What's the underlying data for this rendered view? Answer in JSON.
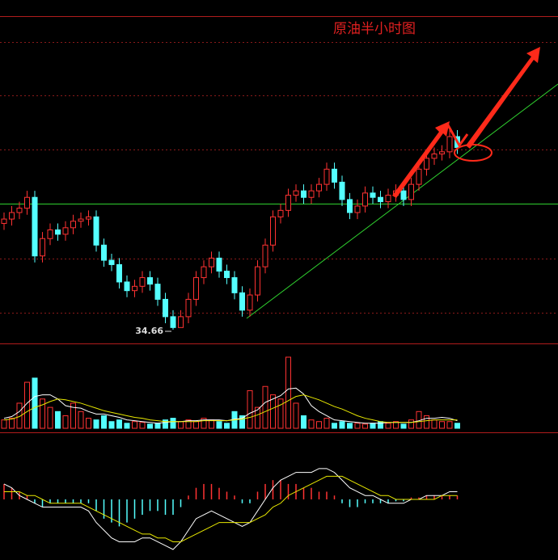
{
  "chart_data": {
    "type": "candlestick",
    "title": "原油半小时图",
    "up_color": "#ff3232",
    "down_color": "#54ffff",
    "open": [
      35.15,
      35.17,
      35.2,
      35.22,
      35.27,
      35.0,
      35.08,
      35.12,
      35.1,
      35.13,
      35.16,
      35.17,
      35.18,
      35.05,
      34.98,
      34.96,
      34.88,
      34.84,
      34.86,
      34.9,
      34.87,
      34.8,
      34.72,
      34.67,
      34.72,
      34.8,
      34.9,
      34.95,
      34.99,
      34.93,
      34.9,
      34.83,
      34.75,
      34.82,
      34.95,
      35.05,
      35.18,
      35.21,
      35.28,
      35.3,
      35.27,
      35.3,
      35.33,
      35.4,
      35.34,
      35.26,
      35.2,
      35.23,
      35.29,
      35.27,
      35.25,
      35.28,
      35.3,
      35.26,
      35.33,
      35.4,
      35.45,
      35.47,
      35.48,
      35.55
    ],
    "high": [
      35.2,
      35.23,
      35.25,
      35.3,
      35.3,
      35.11,
      35.15,
      35.15,
      35.16,
      35.19,
      35.2,
      35.21,
      35.21,
      35.08,
      35.01,
      34.99,
      34.91,
      34.89,
      34.93,
      34.93,
      34.9,
      34.83,
      34.75,
      34.75,
      34.83,
      34.93,
      34.98,
      35.02,
      35.02,
      34.96,
      34.93,
      34.86,
      34.85,
      34.98,
      35.08,
      35.21,
      35.24,
      35.31,
      35.33,
      35.33,
      35.33,
      35.36,
      35.43,
      35.43,
      35.37,
      35.29,
      35.26,
      35.32,
      35.32,
      35.3,
      35.31,
      35.33,
      35.33,
      35.36,
      35.43,
      35.48,
      35.5,
      35.51,
      35.58,
      35.58
    ],
    "low": [
      35.12,
      35.14,
      35.17,
      35.19,
      34.97,
      34.97,
      35.05,
      35.07,
      35.07,
      35.1,
      35.13,
      35.14,
      35.02,
      34.95,
      34.93,
      34.85,
      34.81,
      34.81,
      34.83,
      34.84,
      34.77,
      34.69,
      34.66,
      34.67,
      34.69,
      34.77,
      34.87,
      34.92,
      34.9,
      34.87,
      34.8,
      34.72,
      34.72,
      34.79,
      34.92,
      35.02,
      35.15,
      35.18,
      35.25,
      35.24,
      35.24,
      35.27,
      35.3,
      35.31,
      35.23,
      35.17,
      35.17,
      35.2,
      35.24,
      35.22,
      35.22,
      35.25,
      35.23,
      35.23,
      35.3,
      35.37,
      35.42,
      35.44,
      35.45,
      35.47
    ],
    "close": [
      35.17,
      35.2,
      35.22,
      35.27,
      35.0,
      35.08,
      35.12,
      35.1,
      35.13,
      35.16,
      35.17,
      35.18,
      35.05,
      34.98,
      34.96,
      34.88,
      34.84,
      34.86,
      34.9,
      34.87,
      34.8,
      34.72,
      34.67,
      34.72,
      34.8,
      34.9,
      34.95,
      34.99,
      34.93,
      34.9,
      34.83,
      34.75,
      34.82,
      34.95,
      35.05,
      35.18,
      35.21,
      35.28,
      35.3,
      35.27,
      35.3,
      35.33,
      35.4,
      35.34,
      35.26,
      35.2,
      35.23,
      35.29,
      35.27,
      35.25,
      35.28,
      35.3,
      35.26,
      35.33,
      35.4,
      35.45,
      35.47,
      35.48,
      35.55,
      35.5
    ],
    "volume": [
      10,
      12,
      30,
      55,
      60,
      35,
      25,
      20,
      15,
      30,
      20,
      12,
      10,
      15,
      8,
      10,
      6,
      8,
      7,
      5,
      6,
      10,
      12,
      8,
      10,
      8,
      12,
      10,
      8,
      6,
      20,
      15,
      45,
      25,
      50,
      40,
      35,
      85,
      30,
      15,
      10,
      8,
      12,
      6,
      8,
      6,
      6,
      5,
      6,
      8,
      6,
      8,
      5,
      10,
      20,
      15,
      10,
      8,
      8,
      6
    ],
    "volume_lines": [
      {
        "color": "#ffffff",
        "values": [
          12,
          14,
          20,
          30,
          38,
          40,
          40,
          35,
          27,
          25,
          24,
          20,
          17,
          17,
          15,
          13,
          10,
          9,
          8,
          7,
          6,
          7,
          8,
          8,
          9,
          9,
          10,
          10,
          10,
          9,
          11,
          12,
          18,
          22,
          31,
          35,
          39,
          47,
          48,
          41,
          27,
          20,
          15,
          10,
          9,
          8,
          7,
          6,
          6,
          6,
          7,
          7,
          7,
          7,
          9,
          12,
          12,
          13,
          12,
          9
        ]
      },
      {
        "color": "#e8e800",
        "values": [
          10,
          11,
          14,
          20,
          25,
          28,
          32,
          35,
          34,
          32,
          30,
          27,
          24,
          21,
          19,
          17,
          15,
          13,
          12,
          10,
          9,
          8,
          8,
          8,
          8,
          8,
          9,
          9,
          9,
          9,
          10,
          11,
          13,
          16,
          20,
          24,
          28,
          33,
          38,
          40,
          37,
          34,
          30,
          26,
          23,
          19,
          15,
          12,
          10,
          8,
          7,
          7,
          7,
          7,
          8,
          9,
          10,
          10,
          10,
          10
        ]
      }
    ],
    "macd_hist": [
      0.04,
      0.03,
      0.02,
      0.01,
      -0.01,
      -0.02,
      -0.01,
      -0.01,
      -0.01,
      -0.01,
      -0.01,
      -0.01,
      -0.03,
      -0.05,
      -0.06,
      -0.07,
      -0.06,
      -0.05,
      -0.04,
      -0.03,
      -0.03,
      -0.04,
      -0.04,
      -0.02,
      0.01,
      0.03,
      0.04,
      0.04,
      0.03,
      0.02,
      0.01,
      -0.01,
      -0.01,
      0.02,
      0.04,
      0.05,
      0.05,
      0.04,
      0.04,
      0.03,
      0.03,
      0.02,
      0.02,
      0.01,
      -0.01,
      -0.02,
      -0.02,
      -0.01,
      -0.01,
      -0.01,
      -0.01,
      -0.005,
      -0.005,
      0.005,
      0.005,
      0.01,
      0.01,
      0.01,
      0.01,
      0.01
    ],
    "macd_lines": [
      {
        "color": "#ffffff",
        "values": [
          0.04,
          0.03,
          0.01,
          0.0,
          -0.01,
          -0.02,
          -0.02,
          -0.02,
          -0.02,
          -0.02,
          -0.02,
          -0.03,
          -0.06,
          -0.08,
          -0.1,
          -0.11,
          -0.11,
          -0.11,
          -0.1,
          -0.1,
          -0.11,
          -0.12,
          -0.13,
          -0.11,
          -0.08,
          -0.05,
          -0.04,
          -0.03,
          -0.04,
          -0.05,
          -0.06,
          -0.07,
          -0.06,
          -0.03,
          0.0,
          0.03,
          0.05,
          0.06,
          0.07,
          0.07,
          0.07,
          0.08,
          0.08,
          0.07,
          0.05,
          0.03,
          0.02,
          0.01,
          0.01,
          0.0,
          -0.01,
          -0.01,
          -0.01,
          0.0,
          0.0,
          0.01,
          0.01,
          0.01,
          0.02,
          0.02
        ]
      },
      {
        "color": "#e8e800",
        "values": [
          0.02,
          0.02,
          0.02,
          0.01,
          0.01,
          0.0,
          -0.01,
          -0.01,
          -0.01,
          -0.01,
          -0.01,
          -0.02,
          -0.03,
          -0.04,
          -0.05,
          -0.06,
          -0.07,
          -0.08,
          -0.09,
          -0.09,
          -0.1,
          -0.1,
          -0.11,
          -0.11,
          -0.1,
          -0.09,
          -0.08,
          -0.07,
          -0.06,
          -0.06,
          -0.06,
          -0.06,
          -0.06,
          -0.05,
          -0.04,
          -0.02,
          -0.01,
          0.01,
          0.02,
          0.03,
          0.04,
          0.05,
          0.06,
          0.06,
          0.06,
          0.05,
          0.04,
          0.03,
          0.02,
          0.01,
          0.01,
          0.0,
          0.0,
          0.0,
          0.0,
          0.0,
          0.0,
          0.01,
          0.01,
          0.01
        ]
      }
    ]
  }
}
